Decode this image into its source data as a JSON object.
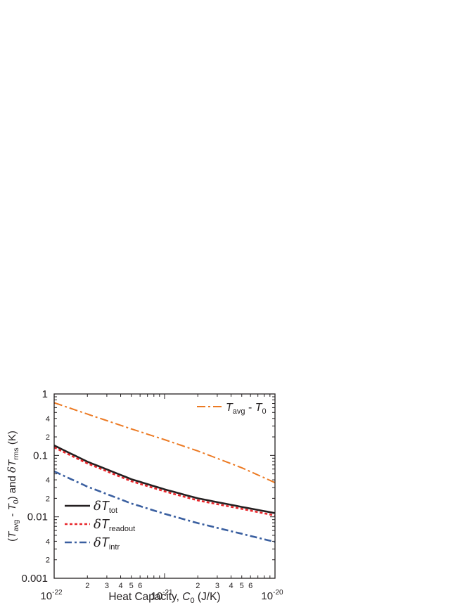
{
  "chart_data": {
    "type": "line",
    "xscale": "log",
    "yscale": "log",
    "xlim": [
      1e-22,
      1e-20
    ],
    "ylim": [
      0.001,
      1
    ],
    "grid": false,
    "x_major_ticks": [
      {
        "value": 1e-22,
        "mantissa": "10",
        "exp": "-22"
      },
      {
        "value": 1e-21,
        "mantissa": "10",
        "exp": "-21"
      },
      {
        "value": 1e-20,
        "mantissa": "10",
        "exp": "-20"
      }
    ],
    "x_minor_labels": [
      "2",
      "3",
      "4",
      "5",
      "6"
    ],
    "y_major_ticks": [
      {
        "value": 0.001,
        "label": "0.001"
      },
      {
        "value": 0.01,
        "label": "0.01"
      },
      {
        "value": 0.1,
        "label": "0.1"
      },
      {
        "value": 1,
        "label": "1"
      }
    ],
    "y_minor_labels": [
      "2",
      "4"
    ],
    "xlabel": {
      "text": "Heat Capacity, ",
      "var": "C",
      "sub": "0",
      "unit": " (J/K)"
    },
    "ylabel": {
      "p1": "(",
      "t1": "T",
      "s1": "avg",
      "p2": " - ",
      "t2": "T",
      "s2": "0",
      "p3": ") and ",
      "d": "δ",
      "t3": "T",
      "s3": "rms",
      "p4": " (K)"
    },
    "series": [
      {
        "key": "Tavg",
        "legend": {
          "t1": "T",
          "s1": "avg",
          "mid": " - ",
          "t2": "T",
          "s2": "0"
        },
        "color": "#ec7a23",
        "dash": "12,4,3,4",
        "width": 2,
        "x": [
          1e-22,
          2e-22,
          5e-22,
          1e-21,
          2e-21,
          5e-21,
          1e-20
        ],
        "y": [
          0.72,
          0.47,
          0.27,
          0.18,
          0.118,
          0.063,
          0.036
        ]
      },
      {
        "key": "tot",
        "legend": {
          "d": "δ",
          "t": "T",
          "s": "tot"
        },
        "color": "#231f20",
        "dash": "",
        "width": 2.6,
        "x": [
          1e-22,
          2e-22,
          5e-22,
          1e-21,
          2e-21,
          5e-21,
          1e-20
        ],
        "y": [
          0.145,
          0.079,
          0.041,
          0.028,
          0.02,
          0.0145,
          0.0115
        ]
      },
      {
        "key": "readout",
        "legend": {
          "d": "δ",
          "t": "T",
          "s": "readout"
        },
        "color": "#e8262b",
        "dash": "4,3",
        "width": 2.6,
        "x": [
          1e-22,
          2e-22,
          5e-22,
          1e-21,
          2e-21,
          5e-21,
          1e-20
        ],
        "y": [
          0.135,
          0.074,
          0.038,
          0.026,
          0.0185,
          0.0135,
          0.0105
        ]
      },
      {
        "key": "intr",
        "legend": {
          "d": "δ",
          "t": "T",
          "s": "intr"
        },
        "color": "#3a5fa0",
        "dash": "10,4,3,4",
        "width": 2.6,
        "x": [
          1e-22,
          2e-22,
          5e-22,
          1e-21,
          2e-21,
          5e-21,
          1e-20
        ],
        "y": [
          0.055,
          0.031,
          0.0165,
          0.0112,
          0.0079,
          0.0053,
          0.0039
        ]
      }
    ]
  }
}
